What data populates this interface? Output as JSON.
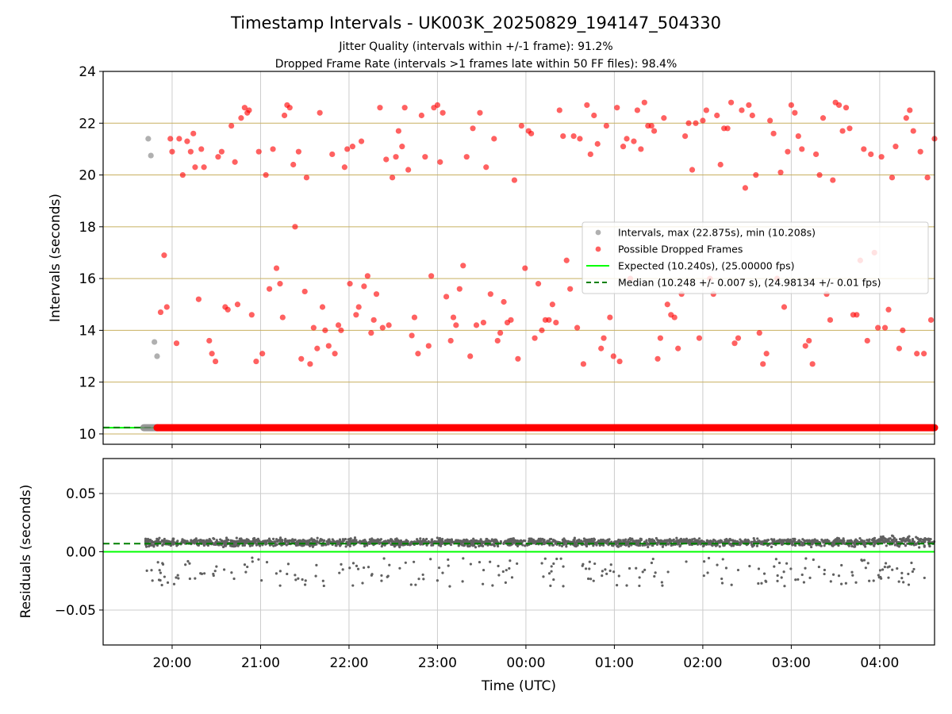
{
  "title": "Timestamp Intervals - UK003K_20250829_194147_504330",
  "subtitle_1": "Jitter Quality (intervals within +/-1 frame): 91.2%",
  "subtitle_2": "Dropped Frame Rate (intervals >1 frames late within 50 FF files): 98.4%",
  "colors": {
    "intervals": "#808080",
    "dropped": "#ff0000",
    "expected": "#00ff00",
    "median": "#008000",
    "hgrid_top": "#c8b060",
    "grid": "#cccccc",
    "residuals": "#606060"
  },
  "chart_data": [
    {
      "type": "scatter",
      "panel": "top",
      "ylabel": "Intervals (seconds)",
      "xlim": [
        -0.78,
        8.62
      ],
      "ylim": [
        9.6,
        24.0
      ],
      "x_ticks": [
        {
          "value": 0,
          "label": "20:00"
        },
        {
          "value": 1,
          "label": "21:00"
        },
        {
          "value": 2,
          "label": "22:00"
        },
        {
          "value": 3,
          "label": "23:00"
        },
        {
          "value": 4,
          "label": "00:00"
        },
        {
          "value": 5,
          "label": "01:00"
        },
        {
          "value": 6,
          "label": "02:00"
        },
        {
          "value": 7,
          "label": "03:00"
        },
        {
          "value": 8,
          "label": "04:00"
        }
      ],
      "y_ticks": [
        10,
        12,
        14,
        16,
        18,
        20,
        22,
        24
      ],
      "grid": true,
      "legend_position": "center-right",
      "legend": [
        {
          "label": "Intervals, max (22.875s), min (10.208s)",
          "kind": "dot",
          "color_key": "intervals"
        },
        {
          "label": "Possible Dropped Frames",
          "kind": "dot",
          "color_key": "dropped"
        },
        {
          "label": "Expected (10.240s), (25.00000 fps)",
          "kind": "solid",
          "color_key": "expected"
        },
        {
          "label": "Median (10.248 +/- 0.007 s), (24.98134 +/- 0.01 fps)",
          "kind": "dashed",
          "color_key": "median"
        }
      ],
      "expected_value": 10.24,
      "median_value": 10.248,
      "baseline_band": {
        "y": 10.24,
        "x_start": -0.32,
        "x_end": 8.62,
        "gray_x_end": -0.17
      },
      "series": [
        {
          "name": "Intervals, max (22.875s), min (10.208s)",
          "color_key": "intervals",
          "points": [
            [
              -0.27,
              21.4
            ],
            [
              -0.24,
              20.75
            ],
            [
              -0.2,
              13.55
            ],
            [
              -0.17,
              13.0
            ]
          ]
        },
        {
          "name": "Possible Dropped Frames",
          "color_key": "dropped",
          "points": [
            [
              -0.13,
              14.7
            ],
            [
              -0.09,
              16.9
            ],
            [
              -0.06,
              14.9
            ],
            [
              -0.02,
              21.4
            ],
            [
              0.0,
              20.9
            ],
            [
              0.05,
              13.5
            ],
            [
              0.08,
              21.4
            ],
            [
              0.12,
              20.0
            ],
            [
              0.17,
              21.3
            ],
            [
              0.21,
              20.9
            ],
            [
              0.24,
              21.6
            ],
            [
              0.26,
              20.3
            ],
            [
              0.3,
              15.2
            ],
            [
              0.33,
              21.0
            ],
            [
              0.36,
              20.3
            ],
            [
              0.42,
              13.6
            ],
            [
              0.45,
              13.1
            ],
            [
              0.49,
              12.8
            ],
            [
              0.52,
              20.7
            ],
            [
              0.56,
              20.9
            ],
            [
              0.6,
              14.9
            ],
            [
              0.63,
              14.8
            ],
            [
              0.67,
              21.9
            ],
            [
              0.71,
              20.5
            ],
            [
              0.74,
              15.0
            ],
            [
              0.78,
              22.2
            ],
            [
              0.82,
              22.6
            ],
            [
              0.85,
              22.4
            ],
            [
              0.87,
              22.5
            ],
            [
              0.9,
              14.6
            ],
            [
              0.95,
              12.8
            ],
            [
              0.98,
              20.9
            ],
            [
              1.02,
              13.1
            ],
            [
              1.06,
              20.0
            ],
            [
              1.1,
              15.6
            ],
            [
              1.14,
              21.0
            ],
            [
              1.18,
              16.4
            ],
            [
              1.22,
              15.8
            ],
            [
              1.25,
              14.5
            ],
            [
              1.27,
              22.3
            ],
            [
              1.3,
              22.7
            ],
            [
              1.33,
              22.6
            ],
            [
              1.37,
              20.4
            ],
            [
              1.39,
              18.0
            ],
            [
              1.43,
              20.9
            ],
            [
              1.46,
              12.9
            ],
            [
              1.5,
              15.5
            ],
            [
              1.52,
              19.9
            ],
            [
              1.56,
              12.7
            ],
            [
              1.6,
              14.1
            ],
            [
              1.64,
              13.3
            ],
            [
              1.67,
              22.4
            ],
            [
              1.7,
              14.9
            ],
            [
              1.73,
              14.0
            ],
            [
              1.77,
              13.4
            ],
            [
              1.81,
              20.8
            ],
            [
              1.84,
              13.1
            ],
            [
              1.88,
              14.2
            ],
            [
              1.91,
              14.0
            ],
            [
              1.95,
              20.3
            ],
            [
              1.98,
              21.0
            ],
            [
              2.01,
              15.8
            ],
            [
              2.04,
              21.1
            ],
            [
              2.08,
              14.6
            ],
            [
              2.11,
              14.9
            ],
            [
              2.14,
              21.3
            ],
            [
              2.17,
              15.7
            ],
            [
              2.21,
              16.1
            ],
            [
              2.25,
              13.9
            ],
            [
              2.28,
              14.4
            ],
            [
              2.31,
              15.4
            ],
            [
              2.35,
              22.6
            ],
            [
              2.38,
              14.1
            ],
            [
              2.42,
              20.6
            ],
            [
              2.45,
              14.2
            ],
            [
              2.49,
              19.9
            ],
            [
              2.53,
              20.7
            ],
            [
              2.56,
              21.7
            ],
            [
              2.6,
              21.1
            ],
            [
              2.63,
              22.6
            ],
            [
              2.67,
              20.2
            ],
            [
              2.71,
              13.8
            ],
            [
              2.74,
              14.5
            ],
            [
              2.78,
              13.1
            ],
            [
              2.82,
              22.3
            ],
            [
              2.86,
              20.7
            ],
            [
              2.9,
              13.4
            ],
            [
              2.93,
              16.1
            ],
            [
              2.96,
              22.6
            ],
            [
              3.0,
              22.7
            ],
            [
              3.03,
              20.5
            ],
            [
              3.06,
              22.4
            ],
            [
              3.1,
              15.3
            ],
            [
              3.15,
              13.6
            ],
            [
              3.18,
              14.5
            ],
            [
              3.21,
              14.2
            ],
            [
              3.25,
              15.6
            ],
            [
              3.29,
              16.5
            ],
            [
              3.33,
              20.7
            ],
            [
              3.37,
              13.0
            ],
            [
              3.4,
              21.8
            ],
            [
              3.44,
              14.2
            ],
            [
              3.48,
              22.4
            ],
            [
              3.52,
              14.3
            ],
            [
              3.55,
              20.3
            ],
            [
              3.6,
              15.4
            ],
            [
              3.64,
              21.4
            ],
            [
              3.68,
              13.6
            ],
            [
              3.71,
              13.9
            ],
            [
              3.75,
              15.1
            ],
            [
              3.79,
              14.3
            ],
            [
              3.83,
              14.4
            ],
            [
              3.87,
              19.8
            ],
            [
              3.91,
              12.9
            ],
            [
              3.95,
              21.9
            ],
            [
              3.99,
              16.4
            ],
            [
              4.03,
              21.7
            ],
            [
              4.06,
              21.6
            ],
            [
              4.1,
              13.7
            ],
            [
              4.14,
              15.8
            ],
            [
              4.18,
              14.0
            ],
            [
              4.22,
              14.4
            ],
            [
              4.26,
              14.4
            ],
            [
              4.3,
              15.0
            ],
            [
              4.34,
              14.3
            ],
            [
              4.38,
              22.5
            ],
            [
              4.42,
              21.5
            ],
            [
              4.46,
              16.7
            ],
            [
              4.5,
              15.6
            ],
            [
              4.54,
              21.5
            ],
            [
              4.58,
              14.1
            ],
            [
              4.61,
              21.4
            ],
            [
              4.65,
              12.7
            ],
            [
              4.69,
              22.7
            ],
            [
              4.73,
              20.8
            ],
            [
              4.77,
              22.3
            ],
            [
              4.81,
              21.2
            ],
            [
              4.85,
              13.3
            ],
            [
              4.88,
              13.7
            ],
            [
              4.91,
              21.9
            ],
            [
              4.95,
              14.5
            ],
            [
              4.99,
              13.0
            ],
            [
              5.03,
              22.6
            ],
            [
              5.06,
              12.8
            ],
            [
              5.1,
              21.1
            ],
            [
              5.14,
              21.4
            ],
            [
              5.18,
              16.0
            ],
            [
              5.22,
              21.3
            ],
            [
              5.26,
              22.5
            ],
            [
              5.3,
              21.0
            ],
            [
              5.34,
              22.8
            ],
            [
              5.38,
              21.9
            ],
            [
              5.42,
              21.9
            ],
            [
              5.45,
              21.7
            ],
            [
              5.49,
              12.9
            ],
            [
              5.52,
              13.7
            ],
            [
              5.56,
              22.2
            ],
            [
              5.6,
              15.0
            ],
            [
              5.64,
              14.6
            ],
            [
              5.68,
              14.5
            ],
            [
              5.72,
              13.3
            ],
            [
              5.76,
              15.4
            ],
            [
              5.8,
              21.5
            ],
            [
              5.84,
              22.0
            ],
            [
              5.88,
              20.2
            ],
            [
              5.92,
              22.0
            ],
            [
              5.96,
              13.7
            ],
            [
              6.0,
              22.1
            ],
            [
              6.04,
              22.5
            ],
            [
              6.08,
              16.0
            ],
            [
              6.12,
              15.4
            ],
            [
              6.16,
              22.3
            ],
            [
              6.2,
              20.4
            ],
            [
              6.24,
              21.8
            ],
            [
              6.28,
              21.8
            ],
            [
              6.32,
              22.8
            ],
            [
              6.36,
              13.5
            ],
            [
              6.4,
              13.7
            ],
            [
              6.44,
              22.5
            ],
            [
              6.48,
              19.5
            ],
            [
              6.52,
              22.7
            ],
            [
              6.56,
              22.3
            ],
            [
              6.6,
              20.0
            ],
            [
              6.64,
              13.9
            ],
            [
              6.68,
              12.7
            ],
            [
              6.72,
              13.1
            ],
            [
              6.76,
              22.1
            ],
            [
              6.8,
              21.6
            ],
            [
              6.84,
              16.0
            ],
            [
              6.88,
              20.1
            ],
            [
              6.92,
              14.9
            ],
            [
              6.96,
              20.9
            ],
            [
              7.0,
              22.7
            ],
            [
              7.04,
              22.4
            ],
            [
              7.08,
              21.5
            ],
            [
              7.12,
              21.0
            ],
            [
              7.16,
              13.4
            ],
            [
              7.2,
              13.6
            ],
            [
              7.24,
              12.7
            ],
            [
              7.28,
              20.8
            ],
            [
              7.32,
              20.0
            ],
            [
              7.36,
              22.2
            ],
            [
              7.4,
              15.4
            ],
            [
              7.44,
              14.4
            ],
            [
              7.47,
              19.8
            ],
            [
              7.5,
              22.8
            ],
            [
              7.54,
              22.7
            ],
            [
              7.58,
              21.7
            ],
            [
              7.62,
              22.6
            ],
            [
              7.66,
              21.8
            ],
            [
              7.7,
              14.6
            ],
            [
              7.74,
              14.6
            ],
            [
              7.78,
              16.7
            ],
            [
              7.82,
              21.0
            ],
            [
              7.86,
              13.6
            ],
            [
              7.9,
              20.8
            ],
            [
              7.94,
              17.0
            ],
            [
              7.98,
              14.1
            ],
            [
              8.02,
              20.7
            ],
            [
              8.06,
              14.1
            ],
            [
              8.1,
              14.8
            ],
            [
              8.14,
              19.9
            ],
            [
              8.18,
              21.1
            ],
            [
              8.22,
              13.3
            ],
            [
              8.26,
              14.0
            ],
            [
              8.3,
              22.2
            ],
            [
              8.34,
              22.5
            ],
            [
              8.38,
              21.7
            ],
            [
              8.42,
              13.1
            ],
            [
              8.46,
              20.9
            ],
            [
              8.5,
              13.1
            ],
            [
              8.54,
              19.9
            ],
            [
              8.58,
              14.4
            ],
            [
              8.62,
              21.4
            ]
          ]
        }
      ]
    },
    {
      "type": "scatter",
      "panel": "bottom",
      "xlabel": "Time (UTC)",
      "ylabel": "Residuals (seconds)",
      "xlim": [
        -0.78,
        8.62
      ],
      "ylim": [
        -0.08,
        0.08
      ],
      "y_ticks": [
        {
          "value": 0.05,
          "label": "0.05"
        },
        {
          "value": 0.0,
          "label": "0.00"
        },
        {
          "value": -0.05,
          "label": "−0.05"
        }
      ],
      "grid": true,
      "expected_residual": 0.0,
      "median_residual": 0.007,
      "cluster_center": 0.008,
      "cluster_spread": 0.003,
      "outlier_range": [
        -0.03,
        -0.005
      ],
      "series": [
        {
          "name": "residuals",
          "color_key": "residuals",
          "x_range": [
            -0.3,
            8.62
          ]
        }
      ]
    }
  ]
}
